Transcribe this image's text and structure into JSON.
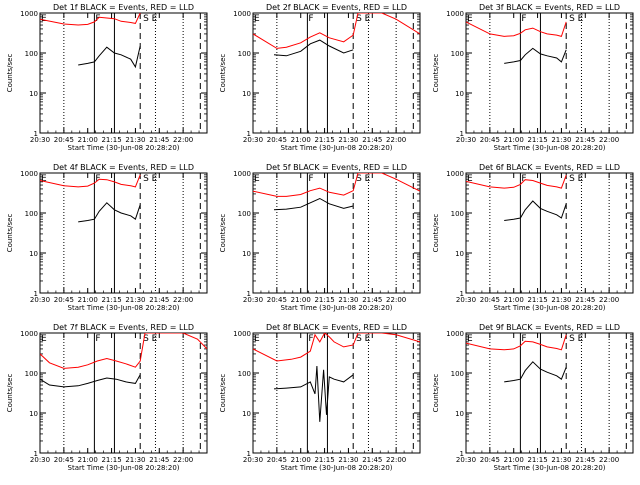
{
  "colors": {
    "events": "#000000",
    "lld": "#ff0000",
    "axis": "#000000",
    "background": "#ffffff"
  },
  "chart_data": [
    {
      "type": "line",
      "title": "Det 1f BLACK = Events, RED = LLD",
      "xlabel": "Start Time (30-Jun-08 20:28:20)",
      "ylabel": "Counts/sec",
      "xlim": [
        20.5,
        22.25
      ],
      "ylim": [
        1,
        1000
      ],
      "yscale": "log",
      "xticks": [
        "20:30",
        "20:45",
        "21:00",
        "21:15",
        "21:30",
        "21:45",
        "22:00"
      ],
      "yticks": [
        "1",
        "10",
        "100",
        "1000"
      ],
      "annotations": [
        "E",
        "F",
        "S",
        "E"
      ],
      "markers": {
        "dotted": [
          20.75,
          21.71,
          22.0
        ],
        "solid": [
          21.07,
          21.28
        ],
        "dashed": [
          21.55,
          22.18
        ]
      },
      "series": [
        {
          "name": "Events",
          "color": "#000000",
          "x": [
            20.9,
            21.0,
            21.07,
            21.12,
            21.2,
            21.28,
            21.35,
            21.45,
            21.5,
            21.55
          ],
          "values": [
            50,
            55,
            60,
            85,
            140,
            100,
            90,
            70,
            45,
            150
          ]
        },
        {
          "name": "LLD",
          "color": "#ff0000",
          "x": [
            20.5,
            20.75,
            20.9,
            21.0,
            21.07,
            21.12,
            21.2,
            21.28,
            21.35,
            21.45,
            21.5,
            21.55
          ],
          "values": [
            700,
            530,
            500,
            520,
            600,
            780,
            750,
            720,
            620,
            580,
            550,
            1000
          ]
        }
      ]
    },
    {
      "type": "line",
      "title": "Det 2f BLACK = Events, RED = LLD",
      "xlabel": "Start Time (30-Jun-08 20:28:20)",
      "ylabel": "Counts/sec",
      "xlim": [
        20.5,
        22.25
      ],
      "ylim": [
        1,
        1000
      ],
      "yscale": "log",
      "xticks": [
        "20:30",
        "20:45",
        "21:00",
        "21:15",
        "21:30",
        "21:45",
        "22:00"
      ],
      "yticks": [
        "1",
        "10",
        "100",
        "1000"
      ],
      "annotations": [
        "E",
        "F",
        "S",
        "E"
      ],
      "markers": {
        "dotted": [
          20.75,
          21.71,
          22.0
        ],
        "solid": [
          21.07,
          21.28
        ],
        "dashed": [
          21.55,
          22.18
        ]
      },
      "series": [
        {
          "name": "Events",
          "color": "#000000",
          "x": [
            20.72,
            20.85,
            21.0,
            21.1,
            21.2,
            21.3,
            21.45,
            21.55
          ],
          "values": [
            90,
            85,
            110,
            170,
            210,
            150,
            100,
            120
          ]
        },
        {
          "name": "LLD",
          "color": "#ff0000",
          "x": [
            20.5,
            20.75,
            20.85,
            21.0,
            21.1,
            21.2,
            21.3,
            21.45,
            21.55,
            21.6,
            21.67,
            21.75,
            21.85,
            22.0,
            22.25
          ],
          "values": [
            300,
            130,
            140,
            180,
            250,
            320,
            240,
            190,
            280,
            1000,
            1000,
            1000,
            1000,
            700,
            300
          ]
        }
      ]
    },
    {
      "type": "line",
      "title": "Det 3f BLACK = Events, RED = LLD",
      "xlabel": "Start Time (30-Jun-08 20:28:20)",
      "ylabel": "Counts/sec",
      "xlim": [
        20.5,
        22.25
      ],
      "ylim": [
        1,
        1000
      ],
      "yscale": "log",
      "xticks": [
        "20:30",
        "20:45",
        "21:00",
        "21:15",
        "21:30",
        "21:45",
        "22:00"
      ],
      "yticks": [
        "1",
        "10",
        "100",
        "1000"
      ],
      "annotations": [
        "E",
        "F",
        "S",
        "E"
      ],
      "markers": {
        "dotted": [
          20.75,
          21.71,
          22.0
        ],
        "solid": [
          21.07,
          21.28
        ],
        "dashed": [
          21.55,
          22.18
        ]
      },
      "series": [
        {
          "name": "Events",
          "color": "#000000",
          "x": [
            20.9,
            21.0,
            21.07,
            21.12,
            21.2,
            21.28,
            21.35,
            21.45,
            21.5,
            21.55
          ],
          "values": [
            55,
            60,
            65,
            90,
            130,
            95,
            85,
            75,
            60,
            120
          ]
        },
        {
          "name": "LLD",
          "color": "#ff0000",
          "x": [
            20.5,
            20.75,
            20.9,
            21.0,
            21.07,
            21.12,
            21.2,
            21.28,
            21.35,
            21.45,
            21.5,
            21.55
          ],
          "values": [
            600,
            300,
            260,
            270,
            310,
            380,
            420,
            340,
            300,
            280,
            260,
            600
          ]
        }
      ]
    },
    {
      "type": "line",
      "title": "Det 4f BLACK = Events, RED = LLD",
      "xlabel": "Start Time (30-Jun-08 20:28:20)",
      "ylabel": "Counts/sec",
      "xlim": [
        20.5,
        22.25
      ],
      "ylim": [
        1,
        1000
      ],
      "yscale": "log",
      "xticks": [
        "20:30",
        "20:45",
        "21:00",
        "21:15",
        "21:30",
        "21:45",
        "22:00"
      ],
      "yticks": [
        "1",
        "10",
        "100",
        "1000"
      ],
      "annotations": [
        "E",
        "F",
        "S",
        "E"
      ],
      "markers": {
        "dotted": [
          20.75,
          21.71,
          22.0
        ],
        "solid": [
          21.07,
          21.28
        ],
        "dashed": [
          21.55,
          22.18
        ]
      },
      "series": [
        {
          "name": "Events",
          "color": "#000000",
          "x": [
            20.9,
            21.0,
            21.07,
            21.12,
            21.2,
            21.28,
            21.35,
            21.45,
            21.5,
            21.55
          ],
          "values": [
            60,
            65,
            70,
            110,
            180,
            120,
            100,
            85,
            70,
            160
          ]
        },
        {
          "name": "LLD",
          "color": "#ff0000",
          "x": [
            20.5,
            20.75,
            20.9,
            21.0,
            21.07,
            21.12,
            21.2,
            21.28,
            21.35,
            21.45,
            21.5,
            21.55
          ],
          "values": [
            650,
            480,
            450,
            470,
            560,
            700,
            680,
            600,
            520,
            480,
            450,
            900
          ]
        }
      ]
    },
    {
      "type": "line",
      "title": "Det 5f BLACK = Events, RED = LLD",
      "xlabel": "Start Time (30-Jun-08 20:28:20)",
      "ylabel": "Counts/sec",
      "xlim": [
        20.5,
        22.25
      ],
      "ylim": [
        1,
        1000
      ],
      "yscale": "log",
      "xticks": [
        "20:30",
        "20:45",
        "21:00",
        "21:15",
        "21:30",
        "21:45",
        "22:00"
      ],
      "yticks": [
        "1",
        "10",
        "100",
        "1000"
      ],
      "annotations": [
        "E",
        "F",
        "S",
        "E"
      ],
      "markers": {
        "dotted": [
          20.75,
          21.71,
          22.0
        ],
        "solid": [
          21.07,
          21.28
        ],
        "dashed": [
          21.55,
          22.18
        ]
      },
      "series": [
        {
          "name": "Events",
          "color": "#000000",
          "x": [
            20.72,
            20.85,
            21.0,
            21.1,
            21.2,
            21.3,
            21.45,
            21.55
          ],
          "values": [
            120,
            125,
            140,
            180,
            230,
            170,
            130,
            150
          ]
        },
        {
          "name": "LLD",
          "color": "#ff0000",
          "x": [
            20.5,
            20.75,
            20.85,
            21.0,
            21.1,
            21.2,
            21.3,
            21.45,
            21.55,
            21.6,
            21.67,
            21.75,
            21.85,
            22.0,
            22.25
          ],
          "values": [
            350,
            260,
            260,
            290,
            360,
            420,
            330,
            280,
            360,
            1000,
            1000,
            1000,
            1000,
            700,
            350
          ]
        }
      ]
    },
    {
      "type": "line",
      "title": "Det 6f BLACK = Events, RED = LLD",
      "xlabel": "Start Time (30-Jun-08 20:28:20)",
      "ylabel": "Counts/sec",
      "xlim": [
        20.5,
        22.25
      ],
      "ylim": [
        1,
        1000
      ],
      "yscale": "log",
      "xticks": [
        "20:30",
        "20:45",
        "21:00",
        "21:15",
        "21:30",
        "21:45",
        "22:00"
      ],
      "yticks": [
        "1",
        "10",
        "100",
        "1000"
      ],
      "annotations": [
        "E",
        "F",
        "S",
        "E"
      ],
      "markers": {
        "dotted": [
          20.75,
          21.71,
          22.0
        ],
        "solid": [
          21.07,
          21.28
        ],
        "dashed": [
          21.55,
          22.18
        ]
      },
      "series": [
        {
          "name": "Events",
          "color": "#000000",
          "x": [
            20.9,
            21.0,
            21.07,
            21.12,
            21.2,
            21.28,
            21.35,
            21.45,
            21.5,
            21.55
          ],
          "values": [
            65,
            70,
            75,
            120,
            200,
            130,
            110,
            90,
            75,
            170
          ]
        },
        {
          "name": "LLD",
          "color": "#ff0000",
          "x": [
            20.5,
            20.75,
            20.9,
            21.0,
            21.07,
            21.12,
            21.2,
            21.28,
            21.35,
            21.45,
            21.5,
            21.55
          ],
          "values": [
            620,
            450,
            420,
            440,
            520,
            680,
            650,
            560,
            490,
            450,
            420,
            880
          ]
        }
      ]
    },
    {
      "type": "line",
      "title": "Det 7f BLACK = Events, RED = LLD",
      "xlabel": "Start Time (30-Jun-08 20:28:20)",
      "ylabel": "Counts/sec",
      "xlim": [
        20.5,
        22.25
      ],
      "ylim": [
        1,
        1000
      ],
      "yscale": "log",
      "xticks": [
        "20:30",
        "20:45",
        "21:00",
        "21:15",
        "21:30",
        "21:45",
        "22:00"
      ],
      "yticks": [
        "1",
        "10",
        "100",
        "1000"
      ],
      "annotations": [
        "E",
        "F",
        "S",
        "E"
      ],
      "markers": {
        "dotted": [
          20.75,
          21.71,
          22.0
        ],
        "solid": [
          21.07,
          21.28
        ],
        "dashed": [
          21.55,
          22.18
        ]
      },
      "series": [
        {
          "name": "Events",
          "color": "#000000",
          "x": [
            20.5,
            20.6,
            20.75,
            20.9,
            21.0,
            21.1,
            21.2,
            21.3,
            21.4,
            21.5,
            21.55
          ],
          "values": [
            70,
            50,
            45,
            48,
            55,
            65,
            75,
            70,
            60,
            55,
            90
          ]
        },
        {
          "name": "LLD",
          "color": "#ff0000",
          "x": [
            20.5,
            20.6,
            20.75,
            20.9,
            21.0,
            21.1,
            21.2,
            21.3,
            21.4,
            21.5,
            21.55,
            21.6,
            21.67,
            21.75,
            22.0,
            22.15,
            22.25
          ],
          "values": [
            300,
            180,
            130,
            140,
            160,
            200,
            230,
            200,
            170,
            140,
            200,
            1000,
            1000,
            1000,
            1000,
            700,
            400
          ]
        }
      ]
    },
    {
      "type": "line",
      "title": "Det 8f BLACK = Events, RED = LLD",
      "xlabel": "Start Time (30-Jun-08 20:28:20)",
      "ylabel": "Counts/sec",
      "xlim": [
        20.5,
        22.25
      ],
      "ylim": [
        1,
        1000
      ],
      "yscale": "log",
      "xticks": [
        "20:30",
        "20:45",
        "21:00",
        "21:15",
        "21:30",
        "21:45",
        "22:00"
      ],
      "yticks": [
        "1",
        "10",
        "100",
        "1000"
      ],
      "annotations": [
        "E",
        "F",
        "S",
        "E"
      ],
      "markers": {
        "dotted": [
          20.75,
          21.71,
          22.0
        ],
        "solid": [
          21.07,
          21.28
        ],
        "dashed": [
          21.55,
          22.18
        ]
      },
      "series": [
        {
          "name": "Events",
          "color": "#000000",
          "x": [
            20.72,
            20.85,
            21.0,
            21.1,
            21.15,
            21.17,
            21.2,
            21.24,
            21.27,
            21.3,
            21.35,
            21.45,
            21.55
          ],
          "values": [
            40,
            42,
            45,
            60,
            30,
            150,
            6,
            120,
            9,
            80,
            70,
            60,
            90
          ]
        },
        {
          "name": "LLD",
          "color": "#ff0000",
          "x": [
            20.5,
            20.75,
            20.9,
            21.0,
            21.1,
            21.15,
            21.2,
            21.25,
            21.3,
            21.35,
            21.45,
            21.55,
            21.6,
            21.67,
            21.75,
            21.85,
            22.0,
            22.25
          ],
          "values": [
            400,
            200,
            220,
            250,
            350,
            900,
            600,
            1000,
            800,
            600,
            450,
            500,
            1000,
            1000,
            1000,
            1000,
            900,
            600
          ]
        }
      ]
    },
    {
      "type": "line",
      "title": "Det 9f BLACK = Events, RED = LLD",
      "xlabel": "Start Time (30-Jun-08 20:28:20)",
      "ylabel": "Counts/sec",
      "xlim": [
        20.5,
        22.25
      ],
      "ylim": [
        1,
        1000
      ],
      "yscale": "log",
      "xticks": [
        "20:30",
        "20:45",
        "21:00",
        "21:15",
        "21:30",
        "21:45",
        "22:00"
      ],
      "yticks": [
        "1",
        "10",
        "100",
        "1000"
      ],
      "annotations": [
        "E",
        "F",
        "S",
        "E"
      ],
      "markers": {
        "dotted": [
          20.75,
          21.71,
          22.0
        ],
        "solid": [
          21.07,
          21.28
        ],
        "dashed": [
          21.55,
          22.18
        ]
      },
      "series": [
        {
          "name": "Events",
          "color": "#000000",
          "x": [
            20.9,
            21.0,
            21.07,
            21.12,
            21.2,
            21.28,
            21.35,
            21.45,
            21.5,
            21.55
          ],
          "values": [
            60,
            65,
            70,
            115,
            190,
            125,
            105,
            85,
            70,
            140
          ]
        },
        {
          "name": "LLD",
          "color": "#ff0000",
          "x": [
            20.5,
            20.75,
            20.9,
            21.0,
            21.07,
            21.12,
            21.2,
            21.28,
            21.35,
            21.45,
            21.5,
            21.55
          ],
          "values": [
            560,
            400,
            380,
            400,
            480,
            620,
            600,
            520,
            450,
            410,
            380,
            900
          ]
        }
      ]
    }
  ]
}
